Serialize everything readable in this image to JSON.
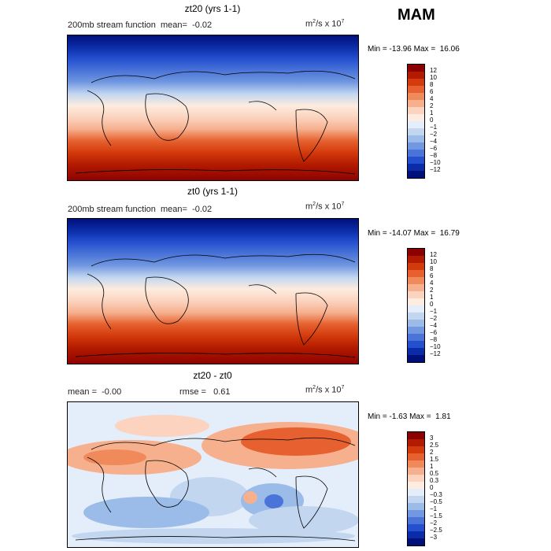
{
  "season": "MAM",
  "panels": [
    {
      "title": "zt20 (yrs 1-1)",
      "subtitle_left": "200mb stream function",
      "mean_label": "mean=",
      "mean_value": "-0.02",
      "units_base": "m",
      "units_exp1": "2",
      "units_mid": "/s x 10",
      "units_exp2": "7",
      "min_label": "Min =",
      "min_value": "-13.96",
      "max_label": "Max =",
      "max_value": "16.06",
      "colorbar_ticks": [
        "12",
        "10",
        "8",
        "6",
        "4",
        "2",
        "1",
        "0",
        "−1",
        "−2",
        "−4",
        "−6",
        "−8",
        "−10",
        "−12"
      ],
      "colorbar_colors": [
        "#8b0000",
        "#b31b00",
        "#d33a0c",
        "#e6612f",
        "#f08a5a",
        "#f6b08e",
        "#fbd3bf",
        "#fdecdf",
        "#e4eefa",
        "#c2d6f0",
        "#9bbbe8",
        "#7198e0",
        "#4a74d8",
        "#2450d0",
        "#0b2ca8",
        "#00107a"
      ]
    },
    {
      "title": "zt0 (yrs 1-1)",
      "subtitle_left": "200mb stream function",
      "mean_label": "mean=",
      "mean_value": "-0.02",
      "units_base": "m",
      "units_exp1": "2",
      "units_mid": "/s x 10",
      "units_exp2": "7",
      "min_label": "Min =",
      "min_value": "-14.07",
      "max_label": "Max =",
      "max_value": "16.79",
      "colorbar_ticks": [
        "12",
        "10",
        "8",
        "6",
        "4",
        "2",
        "1",
        "0",
        "−1",
        "−2",
        "−4",
        "−6",
        "−8",
        "−10",
        "−12"
      ],
      "colorbar_colors": [
        "#8b0000",
        "#b31b00",
        "#d33a0c",
        "#e6612f",
        "#f08a5a",
        "#f6b08e",
        "#fbd3bf",
        "#fdecdf",
        "#e4eefa",
        "#c2d6f0",
        "#9bbbe8",
        "#7198e0",
        "#4a74d8",
        "#2450d0",
        "#0b2ca8",
        "#00107a"
      ]
    },
    {
      "title": "zt20 - zt0",
      "mean_label": "mean =",
      "mean_value": "-0.00",
      "rmse_label": "rmse =",
      "rmse_value": "0.61",
      "units_base": "m",
      "units_exp1": "2",
      "units_mid": "/s x 10",
      "units_exp2": "7",
      "min_label": "Min =",
      "min_value": "-1.63",
      "max_label": "Max =",
      "max_value": "1.81",
      "colorbar_ticks": [
        "3",
        "2.5",
        "2",
        "1.5",
        "1",
        "0.5",
        "0.3",
        "0",
        "−0.3",
        "−0.5",
        "−1",
        "−1.5",
        "−2",
        "−2.5",
        "−3"
      ],
      "colorbar_colors": [
        "#8b0000",
        "#b31b00",
        "#d33a0c",
        "#e6612f",
        "#f08a5a",
        "#f6b08e",
        "#fbd3bf",
        "#fdecdf",
        "#e4eefa",
        "#c2d6f0",
        "#9bbbe8",
        "#7198e0",
        "#4a74d8",
        "#2450d0",
        "#0b2ca8",
        "#00107a"
      ]
    }
  ]
}
